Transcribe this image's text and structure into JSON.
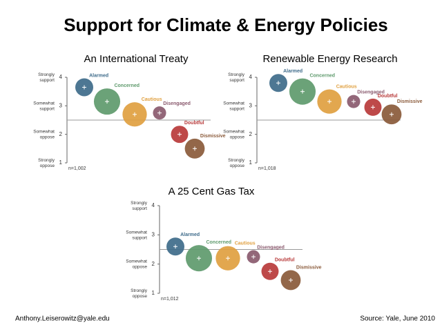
{
  "title": "Support for Climate & Energy Policies",
  "footer": {
    "left": "Anthony.Leiserowitz@yale.edu",
    "right": "Source: Yale, June 2010"
  },
  "chart_data": [
    {
      "type": "bubble",
      "title": "An International Treaty",
      "categories": [
        "Alarmed",
        "Concerned",
        "Cautious",
        "Disengaged",
        "Doubtful",
        "Dismissive"
      ],
      "values": [
        3.65,
        3.15,
        2.7,
        2.75,
        2.0,
        1.5
      ],
      "sizes": [
        13,
        28,
        24,
        7,
        12,
        16
      ],
      "colors": [
        "#3e6b8a",
        "#5e9a6c",
        "#e0a040",
        "#8a5a6e",
        "#b83a3a",
        "#8a5a3a"
      ],
      "ylim": [
        1,
        4
      ],
      "yticks": [
        1,
        2,
        3,
        4
      ],
      "ytick_labels": [
        "Strongly oppose",
        "Somewhat oppose",
        "Somewhat support",
        "Strongly support"
      ],
      "reference_line": 2.5,
      "note": "n=1,002"
    },
    {
      "type": "bubble",
      "title": "Renewable Energy Research",
      "categories": [
        "Alarmed",
        "Concerned",
        "Cautious",
        "Disengaged",
        "Doubtful",
        "Dismissive"
      ],
      "values": [
        3.8,
        3.5,
        3.15,
        3.15,
        2.95,
        2.7
      ],
      "sizes": [
        13,
        28,
        24,
        7,
        12,
        16
      ],
      "colors": [
        "#3e6b8a",
        "#5e9a6c",
        "#e0a040",
        "#8a5a6e",
        "#b83a3a",
        "#8a5a3a"
      ],
      "ylim": [
        1,
        4
      ],
      "yticks": [
        1,
        2,
        3,
        4
      ],
      "ytick_labels": [
        "Strongly oppose",
        "Somewhat oppose",
        "Somewhat support",
        "Strongly support"
      ],
      "reference_line": 2.5,
      "note": "n=1,018"
    },
    {
      "type": "bubble",
      "title": "A 25 Cent Gas Tax",
      "categories": [
        "Alarmed",
        "Concerned",
        "Cautious",
        "Disengaged",
        "Doubtful",
        "Dismissive"
      ],
      "values": [
        2.6,
        2.2,
        2.2,
        2.25,
        1.75,
        1.45
      ],
      "sizes": [
        13,
        28,
        24,
        7,
        12,
        16
      ],
      "colors": [
        "#3e6b8a",
        "#5e9a6c",
        "#e0a040",
        "#8a5a6e",
        "#b83a3a",
        "#8a5a3a"
      ],
      "ylim": [
        1,
        4
      ],
      "yticks": [
        1,
        2,
        3,
        4
      ],
      "ytick_labels": [
        "Strongly oppose",
        "Somewhat oppose",
        "Somewhat support",
        "Strongly support"
      ],
      "reference_line": 2.5,
      "note": "n=1,012"
    }
  ]
}
